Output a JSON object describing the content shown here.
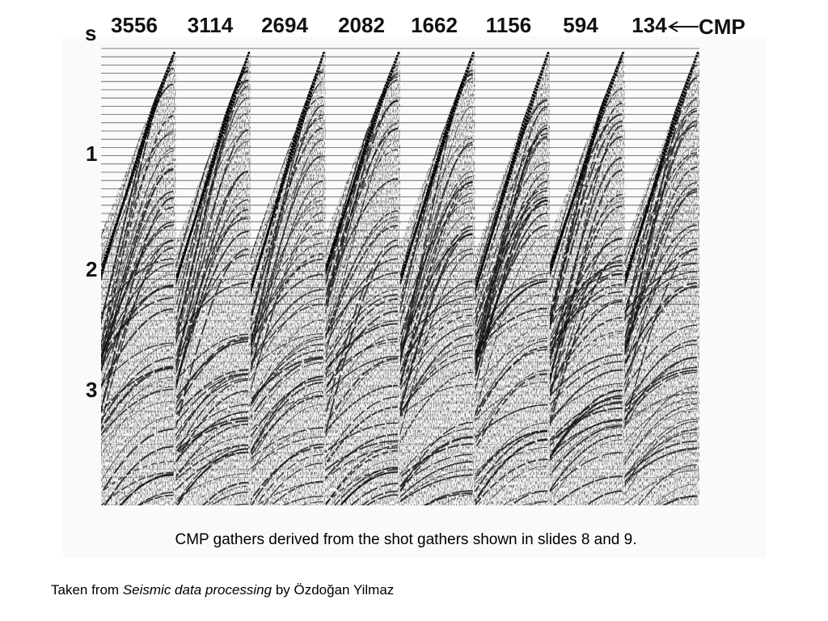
{
  "figure": {
    "time_axis_label": "s",
    "time_labels": [
      "1",
      "2",
      "3"
    ],
    "cmp_labels": [
      "3556",
      "3114",
      "2694",
      "2082",
      "1662",
      "1156",
      "594",
      "134"
    ],
    "cmp_axis_label": "CMP"
  },
  "caption": "CMP gathers derived from the shot gathers shown in slides 8 and 9.",
  "source": {
    "prefix": "Taken from",
    "title": "Seismic data processing",
    "suffix": "by Özdoğan Yilmaz"
  }
}
